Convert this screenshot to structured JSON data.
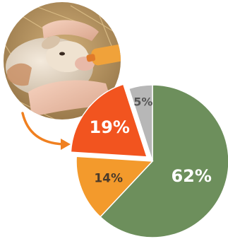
{
  "chart_data": {
    "type": "pie",
    "slices": [
      {
        "label": "62%",
        "value": 62,
        "color": "#6d8f5c",
        "text_color": "#ffffff"
      },
      {
        "label": "14%",
        "value": 14,
        "color": "#f39a2c",
        "text_color": "#4a3a2a"
      },
      {
        "label": "19%",
        "value": 19,
        "color": "#f2541f",
        "text_color": "#ffffff"
      },
      {
        "label": "5%",
        "value": 5,
        "color": "#b7b7b7",
        "text_color": "#555555"
      }
    ],
    "start": "top",
    "direction": "clockwise",
    "highlighted": "19%",
    "grid": false,
    "legend": "none"
  },
  "photo": {
    "icon": "photo-calf-bottle-feeding-icon"
  },
  "arrow": {
    "icon": "curved-arrow-icon",
    "color": "#f08020"
  }
}
